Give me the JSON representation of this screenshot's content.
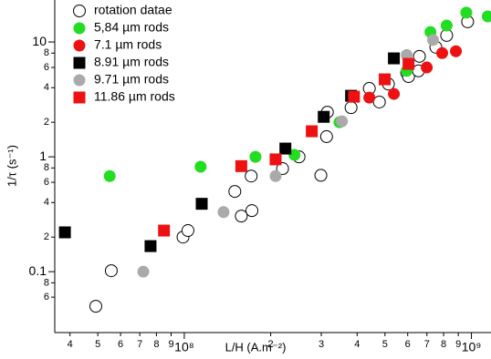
{
  "chart_data": {
    "type": "scatter",
    "xlabel": "L/H (A.m⁻²)",
    "ylabel": "1/τ (s⁻¹)",
    "xscale": "log",
    "yscale": "log",
    "xlim": [
      35400000,
      1170000000
    ],
    "ylim": [
      0.0295,
      23.2
    ],
    "xticks": [
      {
        "value": 40000000,
        "label": "4"
      },
      {
        "value": 50000000,
        "label": "5"
      },
      {
        "value": 60000000,
        "label": "6"
      },
      {
        "value": 70000000,
        "label": "7"
      },
      {
        "value": 80000000,
        "label": "8"
      },
      {
        "value": 90000000,
        "label": "9"
      },
      {
        "value": 100000000,
        "label": "10⁸"
      },
      {
        "value": 200000000,
        "label": "2"
      },
      {
        "value": 300000000,
        "label": "3"
      },
      {
        "value": 400000000,
        "label": "4"
      },
      {
        "value": 500000000,
        "label": "5"
      },
      {
        "value": 600000000,
        "label": "6"
      },
      {
        "value": 700000000,
        "label": "7"
      },
      {
        "value": 800000000,
        "label": "8"
      },
      {
        "value": 900000000,
        "label": "9"
      },
      {
        "value": 1000000000,
        "label": "10⁹"
      }
    ],
    "yticks": [
      {
        "value": 0.06,
        "label": "6"
      },
      {
        "value": 0.08,
        "label": "8"
      },
      0.1,
      {
        "value": 0.2,
        "label": "2"
      },
      {
        "value": 0.4,
        "label": "4"
      },
      {
        "value": 0.6,
        "label": "6"
      },
      {
        "value": 0.8,
        "label": "8"
      },
      1,
      {
        "value": 2,
        "label": "2"
      },
      {
        "value": 4,
        "label": "4"
      },
      {
        "value": 6,
        "label": "6"
      },
      {
        "value": 8,
        "label": "8"
      },
      10
    ],
    "legend": "upper left",
    "series": [
      {
        "name": "rotation datae",
        "color": "#000000",
        "marker": "circle",
        "filled": false,
        "x": [
          49200000,
          55700000,
          99000000,
          103000000,
          150000000,
          158000000,
          172000000,
          171000000,
          220000000,
          251000000,
          299000000,
          315000000,
          313000000,
          381000000,
          441000000,
          478000000,
          514000000,
          595000000,
          604000000,
          654000000,
          659000000,
          752000000,
          820000000,
          970000000
        ],
        "values": [
          0.05,
          0.102,
          0.2,
          0.228,
          0.5,
          0.305,
          0.34,
          0.68,
          0.79,
          1.0,
          0.69,
          2.45,
          1.5,
          2.68,
          3.94,
          3.0,
          4.3,
          5.4,
          5.0,
          5.6,
          7.5,
          9.0,
          11.4,
          15.0
        ]
      },
      {
        "name": "5,84 µm rods",
        "color": "#22dd22",
        "marker": "circle",
        "filled": true,
        "x": [
          55000000,
          114000000,
          177000000,
          242000000,
          347000000,
          595000000,
          720000000,
          820000000,
          960000000,
          1140000000
        ],
        "values": [
          0.68,
          0.82,
          1.0,
          1.04,
          2.0,
          5.6,
          12.2,
          13.9,
          18,
          16.7
        ]
      },
      {
        "name": "7.1 µm rods",
        "color": "#ee1111",
        "marker": "circle",
        "filled": true,
        "x": [
          441000000,
          537000000,
          699000000,
          791000000,
          883000000
        ],
        "values": [
          3.28,
          3.53,
          6.0,
          8.0,
          8.3
        ]
      },
      {
        "name": "8.91 µm rods",
        "color": "#000000",
        "marker": "square",
        "filled": true,
        "x": [
          38400000,
          76300000,
          115000000,
          225000000,
          306000000,
          381000000,
          537000000
        ],
        "values": [
          0.22,
          0.167,
          0.39,
          1.18,
          2.23,
          3.4,
          7.2
        ]
      },
      {
        "name": "9.71 µm rods",
        "color": "#aaaaaa",
        "marker": "circle",
        "filled": true,
        "x": [
          72000000,
          137000000,
          208000000,
          354000000,
          595000000,
          735000000
        ],
        "values": [
          0.1,
          0.33,
          0.68,
          2.04,
          7.7,
          10.4
        ]
      },
      {
        "name": "11.86 µm rods",
        "color": "#ee1111",
        "marker": "square",
        "filled": true,
        "x": [
          85000000,
          158000000,
          208000000,
          278000000,
          390000000,
          499000000,
          604000000
        ],
        "values": [
          0.228,
          0.83,
          0.95,
          1.67,
          3.34,
          4.73,
          6.45
        ]
      }
    ]
  }
}
